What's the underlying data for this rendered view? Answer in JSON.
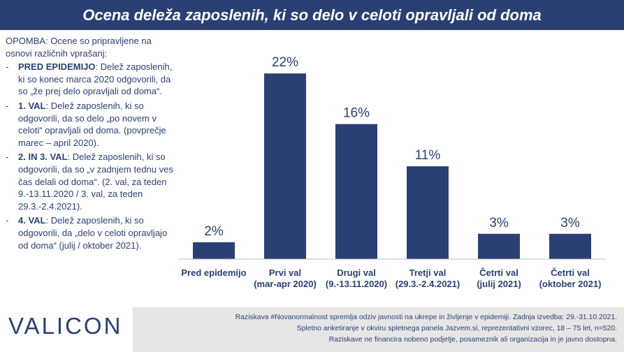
{
  "header": {
    "title": "Ocena deleža zaposlenih, ki so delo v celoti opravljali od doma"
  },
  "note": {
    "intro": "OPOMBA: Ocene so pripravljene na osnovi različnih vprašanj:",
    "items": [
      {
        "dash": "-",
        "key": "PRED EPIDEMIJO",
        "text": ": Delež zaposlenih, ki so konec marca 2020 odgovorili, da so „že prej delo opravljali od doma“."
      },
      {
        "dash": "-",
        "key": "1. VAL",
        "text": ": Delež zaposlenih, ki so odgovorili, da so delo „po novem v celoti“ opravljali od doma. (povprečje marec – april 2020)."
      },
      {
        "dash": "-",
        "key": "2. IN 3. VAL",
        "text": ": Delež zaposlenih, ki so odgovorili, da so „v zadnjem tednu ves čas delali od doma“. (2. val, za teden 9.-13.11.2020 / 3. val, za teden 29.3.-2.4.2021)."
      },
      {
        "dash": "-",
        "key": "4. VAL",
        "text": ": Delež zaposlenih, ki so odgovorili, da „delo v celoti opravljajo od doma“ (julij / oktober 2021)."
      }
    ]
  },
  "chart_data": {
    "type": "bar",
    "categories": [
      [
        "Pred epidemijo"
      ],
      [
        "Prvi val",
        "(mar-apr 2020)"
      ],
      [
        "Drugi val",
        "(9.-13.11.2020)"
      ],
      [
        "Tretji val",
        "(29.3.-2.4.2021)"
      ],
      [
        "Četrti val",
        "(julij 2021)"
      ],
      [
        "Četrti val",
        "(oktober 2021)"
      ]
    ],
    "values": [
      2,
      22,
      16,
      11,
      3,
      3
    ],
    "data_labels": [
      "2%",
      "22%",
      "16%",
      "11%",
      "3%",
      "3%"
    ],
    "ylim": [
      0,
      24
    ],
    "grid": false,
    "legend": "none",
    "bar_color": "#2b4072"
  },
  "branding": {
    "logo": "VALICON"
  },
  "footer": {
    "lines": [
      "Raziskava #Novanormalnost spremlja odziv javnosti na ukrepe in življenje v epidemiji. Zadnja izvedba: 29.-31.10.2021.",
      "Spletno anketiranje v okviru spletnega panela Jazvem.si, reprezentativni vzorec, 18 – 75 let, n=520.",
      "Raziskave ne financira nobeno podjetje, posameznik ali organizacija in je javno dostopna."
    ]
  },
  "colors": {
    "brand": "#2b4072",
    "footer_bg": "#e6e6e6",
    "text": "#2b4072"
  }
}
